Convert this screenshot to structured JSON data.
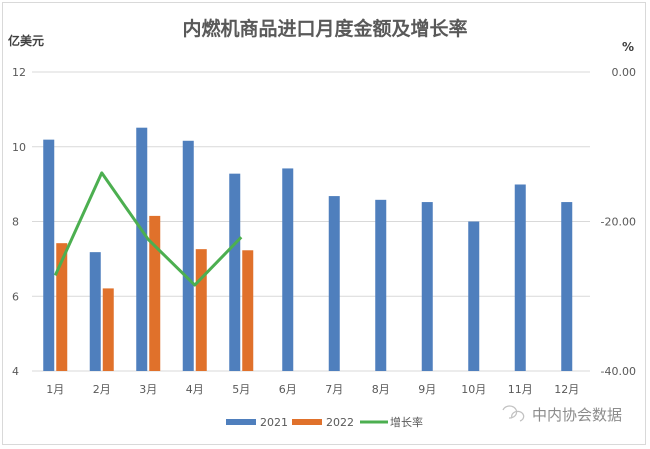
{
  "chart_data": {
    "type": "bar",
    "title": "内燃机商品进口月度金额及增长率",
    "ylabel": "亿美元",
    "y2label": "%",
    "categories": [
      "1月",
      "2月",
      "3月",
      "4月",
      "5月",
      "6月",
      "7月",
      "8月",
      "9月",
      "10月",
      "11月",
      "12月"
    ],
    "ylim": [
      4,
      12
    ],
    "yticks": [
      4,
      6,
      8,
      10,
      12
    ],
    "y2lim": [
      -40,
      0
    ],
    "y2ticks": [
      "-40.00",
      "-20.00",
      "0.00"
    ],
    "grid": true,
    "legend_position": "bottom",
    "series": [
      {
        "name": "2021",
        "type": "bar",
        "color": "#4f7fbd",
        "values": [
          10.19,
          7.18,
          10.51,
          10.16,
          9.28,
          9.42,
          8.68,
          8.58,
          8.52,
          8.0,
          8.99,
          8.52
        ]
      },
      {
        "name": "2022",
        "type": "bar",
        "color": "#e0712b",
        "values": [
          7.42,
          6.21,
          8.15,
          7.26,
          7.23,
          null,
          null,
          null,
          null,
          null,
          null,
          null
        ]
      },
      {
        "name": "增长率",
        "type": "line",
        "axis": "right",
        "color": "#4caf50",
        "values": [
          -27.2,
          -13.5,
          -22.4,
          -28.5,
          -22.1,
          null,
          null,
          null,
          null,
          null,
          null,
          null
        ]
      }
    ]
  },
  "watermark": "中内协会数据"
}
